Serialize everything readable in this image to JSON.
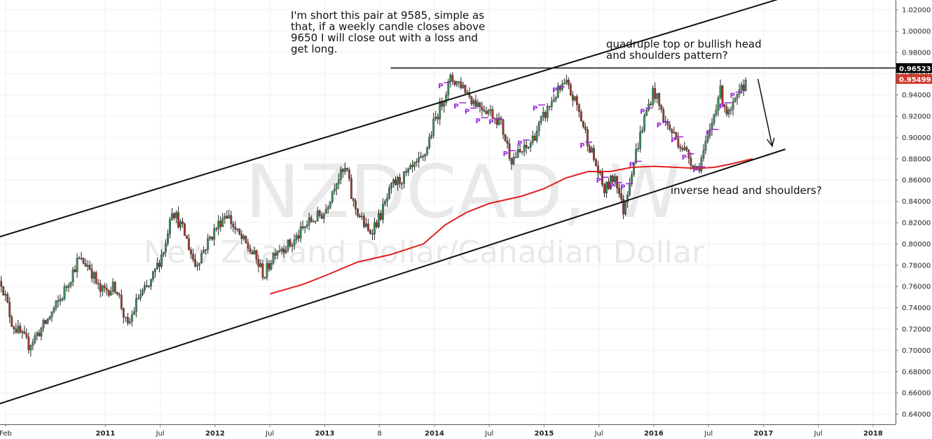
{
  "chart_data": {
    "type": "candlestick",
    "symbol": "NZDCAD, W",
    "subtitle": "New Zealand Dollar/Canadian Dollar",
    "ylim": [
      0.63,
      1.03
    ],
    "y_ticks": [
      "1.02000",
      "1.00000",
      "0.98000",
      "0.96000",
      "0.94000",
      "0.92000",
      "0.90000",
      "0.88000",
      "0.86000",
      "0.84000",
      "0.82000",
      "0.80000",
      "0.78000",
      "0.76000",
      "0.74000",
      "0.72000",
      "0.70000",
      "0.68000",
      "0.66000",
      "0.64000"
    ],
    "x_ticks": [
      {
        "label": "Feb",
        "t": 2010.09,
        "bold": false
      },
      {
        "label": "2011",
        "t": 2011.0,
        "bold": true
      },
      {
        "label": "Jul",
        "t": 2011.5,
        "bold": false
      },
      {
        "label": "2012",
        "t": 2012.0,
        "bold": true
      },
      {
        "label": "Jul",
        "t": 2012.5,
        "bold": false
      },
      {
        "label": "2013",
        "t": 2013.0,
        "bold": true
      },
      {
        "label": "8",
        "t": 2013.5,
        "bold": false
      },
      {
        "label": "2014",
        "t": 2014.0,
        "bold": true
      },
      {
        "label": "Jul",
        "t": 2014.5,
        "bold": false
      },
      {
        "label": "2015",
        "t": 2015.0,
        "bold": true
      },
      {
        "label": "Jul",
        "t": 2015.5,
        "bold": false
      },
      {
        "label": "2016",
        "t": 2016.0,
        "bold": true
      },
      {
        "label": "Jul",
        "t": 2016.5,
        "bold": false
      },
      {
        "label": "2017",
        "t": 2017.0,
        "bold": true
      },
      {
        "label": "Jul",
        "t": 2017.5,
        "bold": false
      },
      {
        "label": "2018",
        "t": 2018.0,
        "bold": true
      }
    ],
    "price_path": [
      [
        2010.05,
        0.765
      ],
      [
        2010.15,
        0.725
      ],
      [
        2010.3,
        0.705
      ],
      [
        2010.45,
        0.725
      ],
      [
        2010.6,
        0.75
      ],
      [
        2010.75,
        0.785
      ],
      [
        2010.85,
        0.78
      ],
      [
        2010.95,
        0.755
      ],
      [
        2011.1,
        0.76
      ],
      [
        2011.2,
        0.72
      ],
      [
        2011.3,
        0.75
      ],
      [
        2011.4,
        0.76
      ],
      [
        2011.55,
        0.8
      ],
      [
        2011.6,
        0.835
      ],
      [
        2011.72,
        0.81
      ],
      [
        2011.82,
        0.78
      ],
      [
        2011.95,
        0.805
      ],
      [
        2012.1,
        0.83
      ],
      [
        2012.2,
        0.81
      ],
      [
        2012.35,
        0.79
      ],
      [
        2012.45,
        0.77
      ],
      [
        2012.55,
        0.795
      ],
      [
        2012.7,
        0.8
      ],
      [
        2012.85,
        0.82
      ],
      [
        2013.0,
        0.83
      ],
      [
        2013.1,
        0.86
      ],
      [
        2013.2,
        0.87
      ],
      [
        2013.25,
        0.84
      ],
      [
        2013.4,
        0.81
      ],
      [
        2013.5,
        0.825
      ],
      [
        2013.62,
        0.855
      ],
      [
        2013.75,
        0.865
      ],
      [
        2013.9,
        0.88
      ],
      [
        2014.0,
        0.915
      ],
      [
        2014.15,
        0.955
      ],
      [
        2014.25,
        0.95
      ],
      [
        2014.35,
        0.935
      ],
      [
        2014.5,
        0.925
      ],
      [
        2014.6,
        0.915
      ],
      [
        2014.7,
        0.88
      ],
      [
        2014.85,
        0.89
      ],
      [
        2015.0,
        0.92
      ],
      [
        2015.1,
        0.94
      ],
      [
        2015.2,
        0.95
      ],
      [
        2015.3,
        0.93
      ],
      [
        2015.42,
        0.89
      ],
      [
        2015.55,
        0.85
      ],
      [
        2015.65,
        0.865
      ],
      [
        2015.72,
        0.83
      ],
      [
        2015.8,
        0.87
      ],
      [
        2015.92,
        0.92
      ],
      [
        2016.0,
        0.945
      ],
      [
        2016.1,
        0.915
      ],
      [
        2016.2,
        0.9
      ],
      [
        2016.3,
        0.885
      ],
      [
        2016.4,
        0.87
      ],
      [
        2016.5,
        0.9
      ],
      [
        2016.6,
        0.945
      ],
      [
        2016.68,
        0.92
      ],
      [
        2016.78,
        0.94
      ],
      [
        2016.85,
        0.955
      ]
    ],
    "moving_average": [
      [
        2012.5,
        0.753
      ],
      [
        2012.8,
        0.762
      ],
      [
        2013.0,
        0.77
      ],
      [
        2013.3,
        0.783
      ],
      [
        2013.6,
        0.79
      ],
      [
        2013.9,
        0.8
      ],
      [
        2014.1,
        0.818
      ],
      [
        2014.3,
        0.83
      ],
      [
        2014.5,
        0.838
      ],
      [
        2014.8,
        0.845
      ],
      [
        2015.0,
        0.852
      ],
      [
        2015.2,
        0.862
      ],
      [
        2015.4,
        0.868
      ],
      [
        2015.6,
        0.868
      ],
      [
        2015.8,
        0.872
      ],
      [
        2016.0,
        0.873
      ],
      [
        2016.2,
        0.872
      ],
      [
        2016.4,
        0.871
      ],
      [
        2016.55,
        0.872
      ],
      [
        2016.7,
        0.875
      ],
      [
        2016.9,
        0.88
      ]
    ],
    "trendline_upper": [
      [
        2009.95,
        0.804
      ],
      [
        2017.2,
        1.032
      ]
    ],
    "trendline_lower": [
      [
        2009.95,
        0.647
      ],
      [
        2017.2,
        0.889
      ]
    ],
    "resistance_line": {
      "from": 2013.6,
      "to": 2017.2,
      "value": 0.9653
    },
    "arrow": {
      "from": [
        2016.95,
        0.955
      ],
      "to": [
        2017.08,
        0.892
      ]
    },
    "price_labels": [
      {
        "text": "0.96523",
        "value": 0.96523,
        "color": "#000000"
      },
      {
        "text": "0.95499",
        "value": 0.95499,
        "color": "#d23a2f"
      }
    ],
    "pivot_markers": [
      [
        2014.06,
        0.949
      ],
      [
        2014.2,
        0.93
      ],
      [
        2014.3,
        0.925
      ],
      [
        2014.4,
        0.916
      ],
      [
        2014.52,
        0.915
      ],
      [
        2014.65,
        0.885
      ],
      [
        2014.78,
        0.895
      ],
      [
        2014.92,
        0.928
      ],
      [
        2015.1,
        0.945
      ],
      [
        2015.35,
        0.893
      ],
      [
        2015.5,
        0.86
      ],
      [
        2015.62,
        0.855
      ],
      [
        2015.72,
        0.854
      ],
      [
        2015.8,
        0.875
      ],
      [
        2015.9,
        0.925
      ],
      [
        2016.05,
        0.912
      ],
      [
        2016.18,
        0.898
      ],
      [
        2016.28,
        0.882
      ],
      [
        2016.38,
        0.87
      ],
      [
        2016.5,
        0.905
      ],
      [
        2016.62,
        0.93
      ],
      [
        2016.72,
        0.94
      ]
    ],
    "colors": {
      "up": "#3b8d5c",
      "down": "#a5372c",
      "ma": "#e0201e",
      "pivot": "#9b27d8"
    },
    "grid": true
  },
  "annotations": {
    "note_short": "I'm short this pair at 9585, simple as\nthat, if a weekly candle closes above\n9650 I will close out with a loss and\nget long.",
    "note_pattern": "quadruple top or bullish head\nand shoulders pattern?",
    "note_inverse": "inverse head and shoulders?"
  },
  "watermark": {
    "symbol": "NZDCAD, W",
    "name": "New Zealand Dollar/Canadian Dollar"
  },
  "pivot_label": "P"
}
